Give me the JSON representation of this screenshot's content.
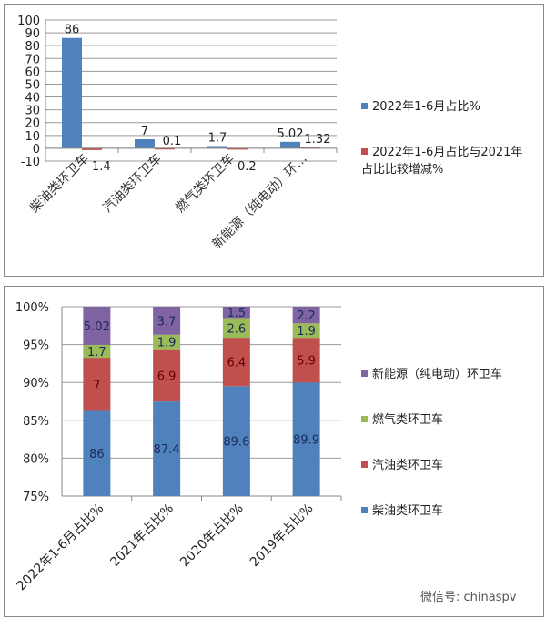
{
  "chart_data": [
    {
      "type": "bar",
      "categories": [
        "柴油类环卫车",
        "汽油类环卫车",
        "燃气类环卫车",
        "新能源（纯电动）环…"
      ],
      "series": [
        {
          "name": "2022年1-6月占比%",
          "color": "#4f81bd",
          "values": [
            86,
            7,
            1.7,
            5.02
          ]
        },
        {
          "name": "2022年1-6月占比与2021年占比比较增减%",
          "color": "#c0504d",
          "values": [
            -1.4,
            0.1,
            -0.2,
            1.32
          ]
        }
      ],
      "ylim": [
        -10,
        100
      ],
      "yticks": [
        100,
        90,
        80,
        70,
        60,
        50,
        40,
        30,
        20,
        10,
        0,
        -10
      ],
      "grid": true,
      "legend": "right"
    },
    {
      "type": "bar",
      "stacked": "100%",
      "categories": [
        "2022年1-6月占比%",
        "2021年占比%",
        "2020年占比%",
        "2019年占比%"
      ],
      "series": [
        {
          "name": "柴油类环卫车",
          "color": "#4f81bd",
          "values": [
            86,
            87.4,
            89.6,
            89.9
          ]
        },
        {
          "name": "汽油类环卫车",
          "color": "#c0504d",
          "values": [
            7,
            6.9,
            6.4,
            5.9
          ]
        },
        {
          "name": "燃气类环卫车",
          "color": "#9bbb59",
          "values": [
            1.7,
            1.9,
            2.6,
            1.9
          ]
        },
        {
          "name": "新能源（纯电动）环卫车",
          "color": "#8064a2",
          "values": [
            5.02,
            3.7,
            1.5,
            2.2
          ]
        }
      ],
      "ylim": [
        75,
        100
      ],
      "yticks": [
        "100%",
        "95%",
        "90%",
        "85%",
        "80%",
        "75%"
      ],
      "grid": true,
      "legend": "right"
    }
  ],
  "watermark": "微信号: chinaspv"
}
